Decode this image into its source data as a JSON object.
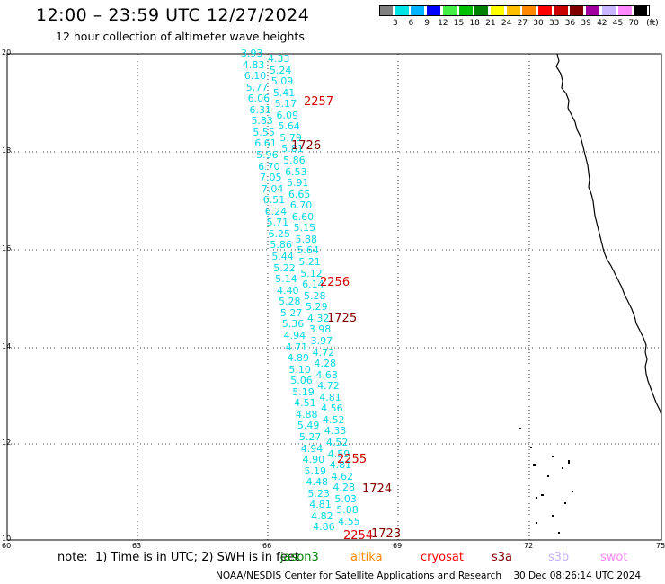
{
  "header": {
    "title": "12:00 – 23:59 UTC 12/27/2024",
    "subtitle": "12 hour collection of altimeter wave heights"
  },
  "colorbar": {
    "colors": [
      "#808080",
      "#00e4e4",
      "#00b4ff",
      "#0000ff",
      "#44ee44",
      "#00c000",
      "#008000",
      "#ffff00",
      "#ffc000",
      "#ff8800",
      "#ff0000",
      "#c80000",
      "#800000",
      "#a000a0",
      "#c8b4ff",
      "#ff88ff",
      "#000000"
    ],
    "labels": [
      "3",
      "6",
      "9",
      "12",
      "15",
      "18",
      "21",
      "24",
      "27",
      "30",
      "33",
      "36",
      "39",
      "42",
      "45",
      "70"
    ],
    "unit": "(ft)"
  },
  "axes": {
    "lat_labels": [
      "20",
      "18",
      "16",
      "14",
      "12",
      "10"
    ],
    "lon_labels": [
      "60",
      "63",
      "66",
      "69",
      "72",
      "75"
    ]
  },
  "wave_heights": [
    "3.93",
    "4.33",
    "4.83",
    "5.24",
    "6.10",
    "5.09",
    "5.77",
    "5.41",
    "6.06",
    "5.17",
    "6.31",
    "6.09",
    "5.83",
    "5.64",
    "5.55",
    "5.79",
    "6.61",
    "5.81",
    "5.96",
    "5.86",
    "6.70",
    "6.53",
    "7.05",
    "5.91",
    "7.04",
    "6.65",
    "6.51",
    "6.70",
    "6.24",
    "6.60",
    "5.71",
    "5.15",
    "6.25",
    "5.88",
    "5.86",
    "5.64",
    "5.44",
    "5.21",
    "5.22",
    "5.12",
    "5.14",
    "6.14",
    "4.40",
    "5.28",
    "5.28",
    "5.29",
    "5.27",
    "4.32",
    "5.36",
    "3.98",
    "4.94",
    "3.97",
    "4.71",
    "4.72",
    "4.89",
    "4.28",
    "5.10",
    "4.63",
    "5.06",
    "4.72",
    "5.19",
    "4.81",
    "4.51",
    "4.56",
    "4.88",
    "4.52",
    "5.49",
    "4.33",
    "5.27",
    "4.52",
    "4.94",
    "4.59",
    "4.90",
    "4.81",
    "5.19",
    "4.62",
    "4.48",
    "4.28",
    "5.23",
    "5.03",
    "4.81",
    "5.08",
    "4.82",
    "4.55",
    "4.86"
  ],
  "pass_times": [
    {
      "text": "2257",
      "color": "#d40000"
    },
    {
      "text": "1726",
      "color": "#800000"
    },
    {
      "text": "2256",
      "color": "#d40000"
    },
    {
      "text": "1725",
      "color": "#800000"
    },
    {
      "text": "2255",
      "color": "#d40000"
    },
    {
      "text": "1724",
      "color": "#800000"
    },
    {
      "text": "2254",
      "color": "#d40000"
    },
    {
      "text": "1723",
      "color": "#800000"
    }
  ],
  "footer": {
    "note": "note:  1) Time is in UTC; 2) SWH is in feet",
    "satellites": [
      {
        "name": "jason3",
        "color": "#008000"
      },
      {
        "name": "altika",
        "color": "#ff8800"
      },
      {
        "name": "cryosat",
        "color": "#ff0000"
      },
      {
        "name": "s3a",
        "color": "#800000"
      },
      {
        "name": "s3b",
        "color": "#c8b4ff"
      },
      {
        "name": "swot",
        "color": "#ff88ff"
      }
    ],
    "credit": "NOAA/NESDIS Center for Satellite Applications and Research    30 Dec 08:26:14 UTC 2024"
  }
}
